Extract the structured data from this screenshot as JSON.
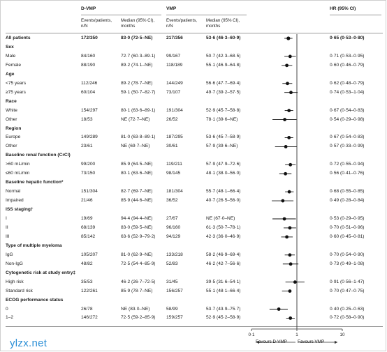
{
  "header": {
    "dvmp_group": "D-VMP",
    "vmp_group": "VMP",
    "hr_header": "HR (95% CI)",
    "col_events": "Events/patients, n/N",
    "col_median": "Median (95% CI), months"
  },
  "rows": [
    {
      "type": "overall",
      "label": "All patients",
      "d_events": "172/350",
      "d_median": "83·0 (72·5–NE)",
      "v_events": "217/356",
      "v_median": "53·6 (46·3–60·9)",
      "hr_text": "0·65 (0·53–0·80)"
    },
    {
      "type": "group",
      "label": "Sex"
    },
    {
      "type": "sub",
      "label": "Male",
      "d_events": "84/160",
      "d_median": "72·7 (60·3–89·1)",
      "v_events": "99/167",
      "v_median": "50·7 (42·3–68·5)",
      "hr_text": "0·71 (0·53–0·95)"
    },
    {
      "type": "sub",
      "label": "Female",
      "d_events": "88/190",
      "d_median": "89·2 (74·1–NE)",
      "v_events": "118/189",
      "v_median": "55·1 (46·9–64·8)",
      "hr_text": "0·60 (0·46–0·79)"
    },
    {
      "type": "group",
      "label": "Age"
    },
    {
      "type": "sub",
      "label": "<75 years",
      "d_events": "112/246",
      "d_median": "89·2 (78·7–NE)",
      "v_events": "144/249",
      "v_median": "56·6 (47·7–69·4)",
      "hr_text": "0·62 (0·48–0·79)"
    },
    {
      "type": "sub",
      "label": "≥75 years",
      "d_events": "60/104",
      "d_median": "59·1 (50·7–82·7)",
      "v_events": "73/107",
      "v_median": "49·7 (39·2–57·5)",
      "hr_text": "0·74 (0·53–1·04)"
    },
    {
      "type": "group",
      "label": "Race"
    },
    {
      "type": "sub",
      "label": "White",
      "d_events": "154/297",
      "d_median": "80·1 (63·6–89·1)",
      "v_events": "191/304",
      "v_median": "52·9 (45·7–58·8)",
      "hr_text": "0·67 (0·54–0·83)"
    },
    {
      "type": "sub",
      "label": "Other",
      "d_events": "18/53",
      "d_median": "NE (72·7–NE)",
      "v_events": "26/52",
      "v_median": "78·1 (39·6–NE)",
      "hr_text": "0·54 (0·29–0·98)"
    },
    {
      "type": "group",
      "label": "Region"
    },
    {
      "type": "sub",
      "label": "Europe",
      "d_events": "149/289",
      "d_median": "81·0 (63·8–89·1)",
      "v_events": "187/295",
      "v_median": "53·6 (45·7–58·9)",
      "hr_text": "0·67 (0·54–0·83)"
    },
    {
      "type": "sub",
      "label": "Other",
      "d_events": "23/61",
      "d_median": "NE (69·7–NE)",
      "v_events": "30/61",
      "v_median": "57·9 (39·6–NE)",
      "hr_text": "0·57 (0·33–0·99)"
    },
    {
      "type": "group",
      "label": "Baseline renal function (CrCl)"
    },
    {
      "type": "sub",
      "label": ">60 mL/min",
      "d_events": "99/200",
      "d_median": "85·9 (64·5–NE)",
      "v_events": "119/211",
      "v_median": "57·9 (47·9–72·6)",
      "hr_text": "0·72 (0·55–0·94)"
    },
    {
      "type": "sub",
      "label": "≤60 mL/min",
      "d_events": "73/150",
      "d_median": "80·1 (63·6–NE)",
      "v_events": "98/145",
      "v_median": "48·1 (38·0–56·0)",
      "hr_text": "0·56 (0·41–0·76)"
    },
    {
      "type": "group",
      "label": "Baseline hepatic function*"
    },
    {
      "type": "sub",
      "label": "Normal",
      "d_events": "151/304",
      "d_median": "82·7 (69·7–NE)",
      "v_events": "181/304",
      "v_median": "55·7 (48·1–66·4)",
      "hr_text": "0·68 (0·55–0·85)"
    },
    {
      "type": "sub",
      "label": "Impaired",
      "d_events": "21/46",
      "d_median": "85·9 (44·6–NE)",
      "v_events": "36/52",
      "v_median": "40·7 (26·5–56·0)",
      "hr_text": "0·49 (0·28–0·84)"
    },
    {
      "type": "group",
      "label": "ISS staging†"
    },
    {
      "type": "sub",
      "label": "I",
      "d_events": "19/69",
      "d_median": "94·4 (94·4–NE)",
      "v_events": "27/67",
      "v_median": "NE (67·0–NE)",
      "hr_text": "0·53 (0·29–0·95)"
    },
    {
      "type": "sub",
      "label": "II",
      "d_events": "68/139",
      "d_median": "83·0 (59·5–NE)",
      "v_events": "96/160",
      "v_median": "61·3 (50·7–78·1)",
      "hr_text": "0·70 (0·51–0·96)"
    },
    {
      "type": "sub",
      "label": "III",
      "d_events": "85/142",
      "d_median": "63·6 (52·9–79·2)",
      "v_events": "94/129",
      "v_median": "42·3 (36·0–46·9)",
      "hr_text": "0·60 (0·45–0·81)"
    },
    {
      "type": "group",
      "label": "Type of multiple myeloma"
    },
    {
      "type": "sub",
      "label": "IgG",
      "d_events": "105/207",
      "d_median": "81·0 (62·9–NE)",
      "v_events": "133/218",
      "v_median": "58·2 (46·9–69·4)",
      "hr_text": "0·70 (0·54–0·90)"
    },
    {
      "type": "sub",
      "label": "Non-IgG",
      "d_events": "48/82",
      "d_median": "72·5 (54·4–85·9)",
      "v_events": "52/83",
      "v_median": "46·2 (42·7–56·6)",
      "hr_text": "0·73 (0·49–1·08)"
    },
    {
      "type": "group",
      "label": "Cytogenetic risk at study entry‡"
    },
    {
      "type": "sub",
      "label": "High risk",
      "d_events": "35/53",
      "d_median": "46·2 (26·7–72·5)",
      "v_events": "31/45",
      "v_median": "39·5 (31·6–54·1)",
      "hr_text": "0·91 (0·56–1·47)"
    },
    {
      "type": "sub",
      "label": "Standard risk",
      "d_events": "122/261",
      "d_median": "85·9 (78·7–NE)",
      "v_events": "156/257",
      "v_median": "55·1 (48·1–66·4)",
      "hr_text": "0·70 (0·47–0·75)"
    },
    {
      "type": "group",
      "label": "ECOG performance status"
    },
    {
      "type": "sub",
      "label": "0",
      "d_events": "26/78",
      "d_median": "NE (83·0–NE)",
      "v_events": "58/99",
      "v_median": "53·7 (43·9–75·7)",
      "hr_text": "0·40 (0·25–0·63)"
    },
    {
      "type": "sub",
      "label": "1–2",
      "d_events": "146/272",
      "d_median": "72·5 (59·2–85·9)",
      "v_events": "159/257",
      "v_median": "52·9 (45·2–58·9)",
      "hr_text": "0·72 (0·58–0·90)"
    }
  ],
  "chart_data": {
    "type": "scatter",
    "title": "",
    "x_scale": "log",
    "xlim": [
      0.1,
      10
    ],
    "x_ticks": [
      "0·1",
      "1",
      "10"
    ],
    "reference_line_at": 1,
    "favours_left": "Favours D-VMP",
    "favours_right": "Favours VMP",
    "points": [
      {
        "label": "All patients",
        "hr": 0.65,
        "lo": 0.53,
        "hi": 0.8
      },
      {
        "label": "Male",
        "hr": 0.71,
        "lo": 0.53,
        "hi": 0.95
      },
      {
        "label": "Female",
        "hr": 0.6,
        "lo": 0.46,
        "hi": 0.79
      },
      {
        "label": "<75 years",
        "hr": 0.62,
        "lo": 0.48,
        "hi": 0.79
      },
      {
        "label": "≥75 years",
        "hr": 0.74,
        "lo": 0.53,
        "hi": 1.04
      },
      {
        "label": "White",
        "hr": 0.67,
        "lo": 0.54,
        "hi": 0.83
      },
      {
        "label": "Other (race)",
        "hr": 0.54,
        "lo": 0.29,
        "hi": 0.98
      },
      {
        "label": "Europe",
        "hr": 0.67,
        "lo": 0.54,
        "hi": 0.83
      },
      {
        "label": "Other (region)",
        "hr": 0.57,
        "lo": 0.33,
        "hi": 0.99
      },
      {
        "label": ">60 mL/min",
        "hr": 0.72,
        "lo": 0.55,
        "hi": 0.94
      },
      {
        "label": "≤60 mL/min",
        "hr": 0.56,
        "lo": 0.41,
        "hi": 0.76
      },
      {
        "label": "Normal",
        "hr": 0.68,
        "lo": 0.55,
        "hi": 0.85
      },
      {
        "label": "Impaired",
        "hr": 0.49,
        "lo": 0.28,
        "hi": 0.84
      },
      {
        "label": "I",
        "hr": 0.53,
        "lo": 0.29,
        "hi": 0.95
      },
      {
        "label": "II",
        "hr": 0.7,
        "lo": 0.51,
        "hi": 0.96
      },
      {
        "label": "III",
        "hr": 0.6,
        "lo": 0.45,
        "hi": 0.81
      },
      {
        "label": "IgG",
        "hr": 0.7,
        "lo": 0.54,
        "hi": 0.9
      },
      {
        "label": "Non-IgG",
        "hr": 0.73,
        "lo": 0.49,
        "hi": 1.08
      },
      {
        "label": "High risk",
        "hr": 0.91,
        "lo": 0.56,
        "hi": 1.47
      },
      {
        "label": "Standard risk",
        "hr": 0.7,
        "lo": 0.47,
        "hi": 0.75
      },
      {
        "label": "0",
        "hr": 0.4,
        "lo": 0.25,
        "hi": 0.63
      },
      {
        "label": "1–2",
        "hr": 0.72,
        "lo": 0.58,
        "hi": 0.9
      }
    ]
  },
  "watermark": "ylzx.net"
}
